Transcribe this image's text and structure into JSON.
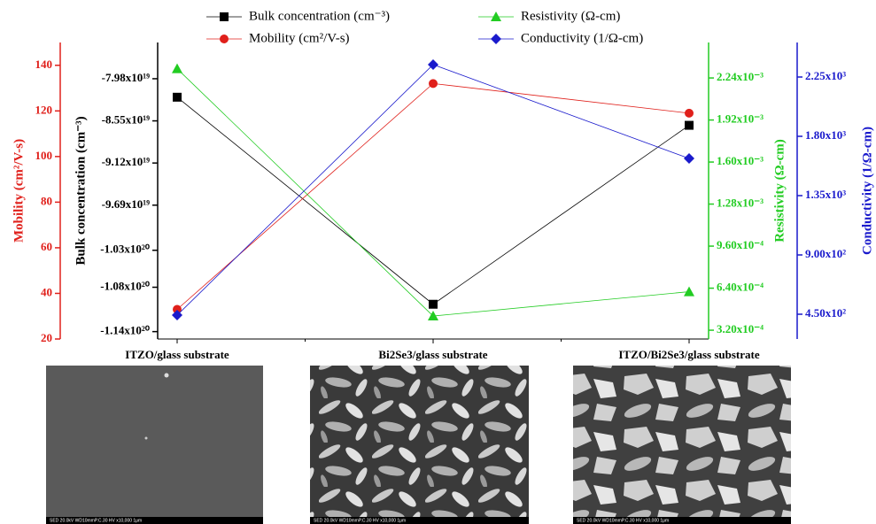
{
  "chart_data": {
    "type": "line",
    "categories": [
      "ITZO/glass substrate",
      "Bi2Se3/glass substrate",
      "ITZO/Bi2Se3/glass substrate"
    ],
    "series": [
      {
        "name": "Bulk concentration (cm⁻³)",
        "color": "#000000",
        "marker": "square",
        "axis": "y2",
        "values": [
          -8.23e+19,
          -1.103e+20,
          -8.61e+19
        ]
      },
      {
        "name": "Mobility (cm²/V-s)",
        "color": "#e0201b",
        "marker": "circle",
        "axis": "y",
        "values": [
          33,
          132,
          119
        ]
      },
      {
        "name": "Resistivity (Ω-cm)",
        "color": "#22cc22",
        "marker": "triangle",
        "axis": "y3",
        "values": [
          0.00231,
          0.000428,
          0.000613
        ]
      },
      {
        "name": "Conductivity (1/Ω-cm)",
        "color": "#1a1acc",
        "marker": "diamond",
        "axis": "y4",
        "values": [
          443,
          2344,
          1632
        ]
      }
    ],
    "ylabel": "Mobility (cm²/V-s)",
    "ylim": [
      20,
      150
    ],
    "yticks": [
      20,
      40,
      60,
      80,
      100,
      120,
      140
    ],
    "y2label": "Bulk concentration (cm⁻³)",
    "y2lim": [
      -1.15e+20,
      -7.49e+19
    ],
    "y2ticks": [
      {
        "value": -1.14e+20,
        "label": "-1.14x10²⁰"
      },
      {
        "value": -1.08e+20,
        "label": "-1.08x10²⁰"
      },
      {
        "value": -1.03e+20,
        "label": "-1.03x10²⁰"
      },
      {
        "value": -9.69e+19,
        "label": "-9.69x10¹⁹"
      },
      {
        "value": -9.12e+19,
        "label": "-9.12x10¹⁹"
      },
      {
        "value": -8.55e+19,
        "label": "-8.55x10¹⁹"
      },
      {
        "value": -7.98e+19,
        "label": "-7.98x10¹⁹"
      }
    ],
    "y3label": "Resistivity (Ω-cm)",
    "y3lim": [
      0.000253,
      0.00251
    ],
    "y3ticks": [
      {
        "value": 0.00032,
        "label": "3.20x10⁻⁴"
      },
      {
        "value": 0.00064,
        "label": "6.40x10⁻⁴"
      },
      {
        "value": 0.00096,
        "label": "9.60x10⁻⁴"
      },
      {
        "value": 0.00128,
        "label": "1.28x10⁻³"
      },
      {
        "value": 0.0016,
        "label": "1.60x10⁻³"
      },
      {
        "value": 0.00192,
        "label": "1.92x10⁻³"
      },
      {
        "value": 0.00224,
        "label": "2.24x10⁻³"
      }
    ],
    "y4label": "Conductivity (1/Ω-cm)",
    "y4lim": [
      262,
      2512
    ],
    "y4ticks": [
      {
        "value": 450,
        "label": "4.50x10²"
      },
      {
        "value": 900,
        "label": "9.00x10²"
      },
      {
        "value": 1350,
        "label": "1.35x10³"
      },
      {
        "value": 1800,
        "label": "1.80x10³"
      },
      {
        "value": 2250,
        "label": "2.25x10³"
      }
    ]
  },
  "images": [
    {
      "caption": "SED 20.0kV WD10mmP.C.30 HV x10,000 1μm"
    },
    {
      "caption": "SED 20.0kV WD10mmP.C.30 HV x10,000 1μm"
    },
    {
      "caption": "SED 20.0kV WD10mmP.C.30 HV x10,000 1μm"
    }
  ]
}
